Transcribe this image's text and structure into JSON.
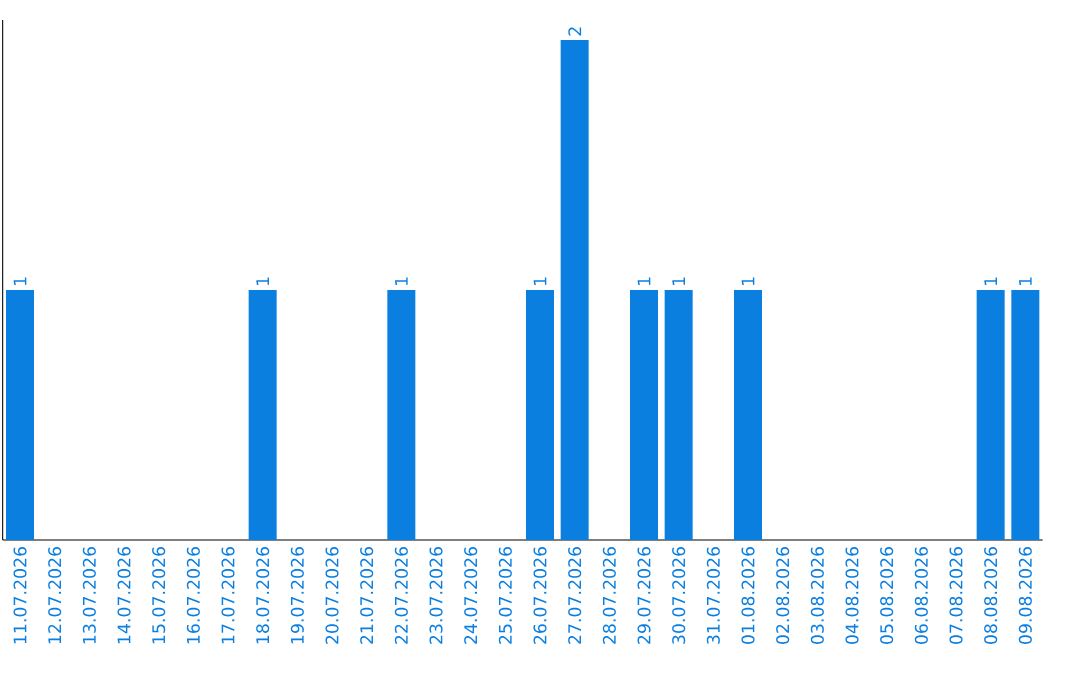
{
  "chart_data": {
    "type": "bar",
    "color": "#0b7fe0",
    "categories": [
      "11.07.2026",
      "12.07.2026",
      "13.07.2026",
      "14.07.2026",
      "15.07.2026",
      "16.07.2026",
      "17.07.2026",
      "18.07.2026",
      "19.07.2026",
      "20.07.2026",
      "21.07.2026",
      "22.07.2026",
      "23.07.2026",
      "24.07.2026",
      "25.07.2026",
      "26.07.2026",
      "27.07.2026",
      "28.07.2026",
      "29.07.2026",
      "30.07.2026",
      "31.07.2026",
      "01.08.2026",
      "02.08.2026",
      "03.08.2026",
      "04.08.2026",
      "05.08.2026",
      "06.08.2026",
      "07.08.2026",
      "08.08.2026",
      "09.08.2026"
    ],
    "values": [
      1,
      0,
      0,
      0,
      0,
      0,
      0,
      1,
      0,
      0,
      0,
      1,
      0,
      0,
      0,
      1,
      2,
      0,
      1,
      1,
      0,
      1,
      0,
      0,
      0,
      0,
      0,
      0,
      1,
      1
    ],
    "value_labels": [
      "1",
      null,
      null,
      null,
      null,
      null,
      null,
      "1",
      null,
      null,
      null,
      "1",
      null,
      null,
      null,
      "1",
      "2",
      null,
      "1",
      "1",
      null,
      "1",
      null,
      null,
      null,
      null,
      null,
      null,
      "1",
      "1"
    ]
  }
}
